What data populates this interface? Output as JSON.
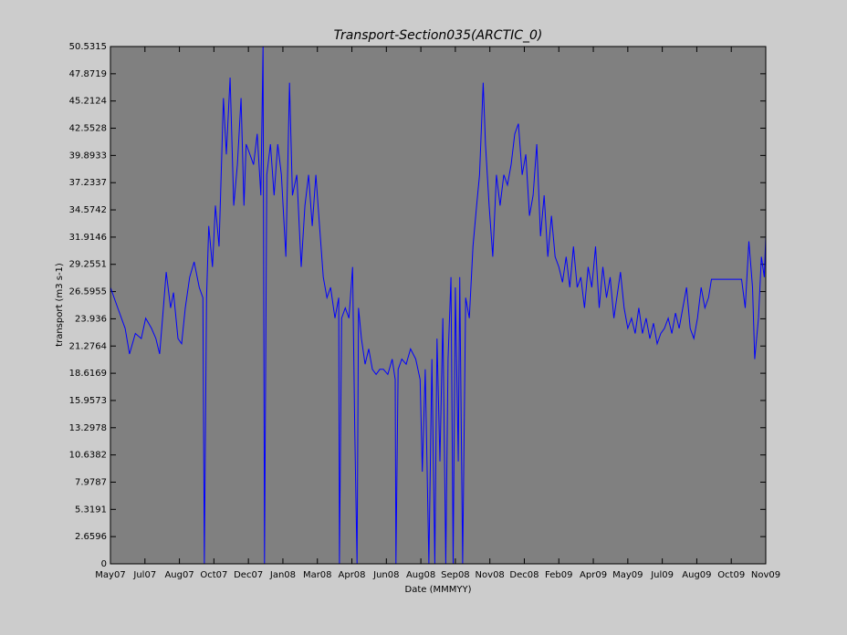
{
  "chart_data": {
    "type": "line",
    "title": "Transport-Section035(ARCTIC_0)",
    "x_label": "Date (MMMYY)",
    "y_label": "transport (m3 s-1)",
    "x": [
      0,
      10,
      20,
      26,
      34,
      42,
      48,
      56,
      62,
      67,
      71,
      76,
      82,
      86,
      92,
      97,
      102,
      108,
      114,
      121,
      126,
      128,
      131,
      134,
      139,
      143,
      148,
      154,
      158,
      163,
      168,
      173,
      178,
      182,
      185,
      190,
      195,
      200,
      205,
      208,
      210,
      213,
      218,
      223,
      228,
      233,
      239,
      244,
      248,
      254,
      260,
      265,
      270,
      275,
      280,
      285,
      290,
      295,
      300,
      306,
      311,
      312,
      315,
      320,
      325,
      330,
      333,
      336,
      338,
      342,
      347,
      352,
      357,
      362,
      367,
      372,
      378,
      384,
      388,
      389,
      392,
      397,
      403,
      409,
      416,
      422,
      425,
      429,
      434,
      438,
      442,
      445,
      449,
      453,
      457,
      460,
      464,
      467,
      470,
      474,
      476,
      480,
      484,
      489,
      494,
      499,
      503,
      508,
      511,
      516,
      521,
      526,
      531,
      536,
      541,
      546,
      551,
      556,
      561,
      566,
      571,
      576,
      581,
      586,
      591,
      596,
      601,
      606,
      611,
      616,
      621,
      626,
      631,
      636,
      641,
      646,
      651,
      656,
      661,
      666,
      671,
      676,
      681,
      686,
      690,
      695,
      700,
      705,
      710,
      715,
      720,
      725,
      730,
      735,
      740,
      745,
      750,
      755,
      760,
      765,
      770,
      775,
      780,
      785,
      790,
      795,
      800,
      805,
      810,
      815,
      819,
      860,
      865,
      870,
      875,
      878,
      883,
      887,
      891,
      893
    ],
    "series": [
      {
        "color": "#0000ff",
        "values": [
          27,
          25,
          23,
          20.5,
          22.5,
          22,
          24,
          23,
          22,
          20.5,
          24,
          28.5,
          25,
          26.5,
          22,
          21.5,
          25,
          28,
          29.5,
          27,
          26,
          0,
          26,
          33,
          29,
          35,
          31,
          45.5,
          40,
          47.5,
          35,
          39,
          45.5,
          35,
          41,
          40,
          39,
          42,
          36,
          50.53,
          0,
          38,
          41,
          36,
          41,
          38,
          30,
          47,
          36,
          38,
          29,
          35,
          38,
          33,
          38,
          33,
          28,
          26,
          27,
          24,
          26,
          0,
          24,
          25,
          24,
          29,
          13,
          0,
          25,
          22,
          19.5,
          21,
          19,
          18.5,
          19,
          19,
          18.5,
          20,
          18,
          0,
          19,
          20,
          19.5,
          21,
          20,
          18,
          9,
          19,
          0,
          20,
          0,
          22,
          10,
          24,
          0,
          20,
          28,
          0,
          27,
          10,
          28,
          0,
          26,
          24,
          31,
          35,
          38,
          47,
          41,
          35,
          30,
          38,
          35,
          38,
          37,
          39,
          42,
          43,
          38,
          40,
          34,
          36,
          41,
          32,
          36,
          30,
          34,
          30,
          29,
          27.5,
          30,
          27,
          31,
          27,
          28,
          25,
          29,
          27,
          31,
          25,
          29,
          26,
          28,
          24,
          26,
          28.5,
          25,
          23,
          24,
          22.5,
          25,
          22.5,
          24,
          22,
          23.5,
          21.5,
          22.5,
          23,
          24,
          22.5,
          24.5,
          23,
          25,
          27,
          23,
          22,
          24,
          27,
          25,
          26,
          27.8,
          27.8,
          25,
          31.5,
          27,
          20,
          24,
          30,
          28,
          32
        ]
      }
    ],
    "xlim": [
      0,
      893
    ],
    "xticks": [
      {
        "value": 0,
        "label": "May07"
      },
      {
        "value": 47,
        "label": "Jul07"
      },
      {
        "value": 94,
        "label": "Aug07"
      },
      {
        "value": 141,
        "label": "Oct07"
      },
      {
        "value": 188,
        "label": "Dec07"
      },
      {
        "value": 235,
        "label": "Jan08"
      },
      {
        "value": 282,
        "label": "Mar08"
      },
      {
        "value": 329,
        "label": "Apr08"
      },
      {
        "value": 376,
        "label": "Jun08"
      },
      {
        "value": 423,
        "label": "Aug08"
      },
      {
        "value": 470,
        "label": "Sep08"
      },
      {
        "value": 517,
        "label": "Nov08"
      },
      {
        "value": 564,
        "label": "Dec08"
      },
      {
        "value": 611,
        "label": "Feb09"
      },
      {
        "value": 658,
        "label": "Apr09"
      },
      {
        "value": 705,
        "label": "May09"
      },
      {
        "value": 752,
        "label": "Jul09"
      },
      {
        "value": 799,
        "label": "Aug09"
      },
      {
        "value": 846,
        "label": "Oct09"
      },
      {
        "value": 893,
        "label": "Nov09"
      }
    ],
    "ylim": [
      0,
      50.5315
    ],
    "yticks": [
      0,
      2.6596,
      5.3191,
      7.9787,
      10.6382,
      13.2978,
      15.9573,
      18.6169,
      21.2764,
      23.936,
      26.5955,
      29.2551,
      31.9146,
      34.5742,
      37.2337,
      39.8933,
      42.5528,
      45.2124,
      47.8719,
      50.5315
    ],
    "background": "#808080"
  }
}
